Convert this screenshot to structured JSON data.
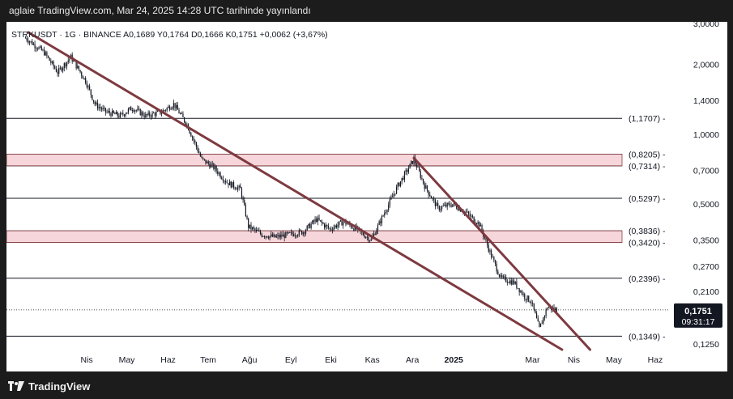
{
  "header": {
    "publish_line": "aglaie TradingView.com, Mar 24, 2025 14:28 UTC tarihinde yayınlandı"
  },
  "legend": {
    "text": "STRKUSDT · 1G · BINANCE  A0,1689  Y0,1764  D0,1666  K0,1751  +0,0062 (+3,67%)"
  },
  "footer": {
    "brand": "TradingView"
  },
  "colors": {
    "trendline": "#7d3a40",
    "zone_fill": "#f6d6da",
    "zone_stroke": "#8a3f45",
    "candle": "#131722",
    "price_tag_bg": "#131722",
    "price_tag_text": "#ffffff"
  },
  "chart_data": {
    "type": "candlestick",
    "symbol": "STRKUSDT",
    "interval": "1G",
    "exchange": "BINANCE",
    "ohlc_last": {
      "open": "0,1689",
      "high": "0,1764",
      "low": "0,1666",
      "close": "0,1751",
      "change": "+0,0062",
      "change_pct": "+3,67%"
    },
    "y_scale": "log",
    "ylim": [
      0.118,
      3.05
    ],
    "y_ticks": [
      {
        "value": 3.0,
        "label": "3,0000"
      },
      {
        "value": 2.0,
        "label": "2,0000"
      },
      {
        "value": 1.4,
        "label": "1,4000"
      },
      {
        "value": 1.0,
        "label": "1,0000"
      },
      {
        "value": 0.7,
        "label": "0,7000"
      },
      {
        "value": 0.5,
        "label": "0,5000"
      },
      {
        "value": 0.35,
        "label": "0,3500"
      },
      {
        "value": 0.27,
        "label": "0,2700"
      },
      {
        "value": 0.21,
        "label": "0,2100"
      },
      {
        "value": 0.125,
        "label": "0,1250"
      }
    ],
    "x_ticks": [
      "Nis",
      "May",
      "Haz",
      "Tem",
      "Ağu",
      "Eyl",
      "Eki",
      "Kas",
      "Ara",
      "2025",
      "Mar",
      "Nis",
      "May",
      "Haz"
    ],
    "levels": [
      {
        "value": 1.1707,
        "label": "(1,1707)"
      },
      {
        "value": 0.8205,
        "label": "(0,8205)"
      },
      {
        "value": 0.7314,
        "label": "(0,7314)"
      },
      {
        "value": 0.5297,
        "label": "(0,5297)"
      },
      {
        "value": 0.3836,
        "label": "(0,3836)"
      },
      {
        "value": 0.342,
        "label": "(0,3420)"
      },
      {
        "value": 0.2396,
        "label": "(0,2396)"
      },
      {
        "value": 0.1349,
        "label": "(0,1349)"
      }
    ],
    "zones": [
      {
        "from": 0.7314,
        "to": 0.8205
      },
      {
        "from": 0.342,
        "to": 0.3836
      }
    ],
    "current_price": {
      "value": 0.1751,
      "label": "0,1751",
      "countdown": "09:31:17"
    },
    "trendlines": [
      {
        "from": [
          "2024-02-22",
          2.75
        ],
        "to": [
          "2025-03-28",
          0.118
        ]
      },
      {
        "from": [
          "2024-12-07",
          0.79
        ],
        "to": [
          "2025-04-18",
          0.118
        ]
      }
    ],
    "price_path": [
      [
        "2024-02-20",
        2.6
      ],
      [
        "2024-03-05",
        2.25
      ],
      [
        "2024-03-15",
        1.85
      ],
      [
        "2024-03-25",
        2.15
      ],
      [
        "2024-04-05",
        1.7
      ],
      [
        "2024-04-12",
        1.35
      ],
      [
        "2024-04-20",
        1.25
      ],
      [
        "2024-05-01",
        1.2
      ],
      [
        "2024-05-10",
        1.3
      ],
      [
        "2024-05-20",
        1.2
      ],
      [
        "2024-06-01",
        1.25
      ],
      [
        "2024-06-10",
        1.35
      ],
      [
        "2024-06-20",
        1.1
      ],
      [
        "2024-07-01",
        0.78
      ],
      [
        "2024-07-10",
        0.72
      ],
      [
        "2024-07-20",
        0.62
      ],
      [
        "2024-07-30",
        0.58
      ],
      [
        "2024-08-05",
        0.4
      ],
      [
        "2024-08-15",
        0.37
      ],
      [
        "2024-08-25",
        0.36
      ],
      [
        "2024-09-05",
        0.37
      ],
      [
        "2024-09-15",
        0.38
      ],
      [
        "2024-09-25",
        0.43
      ],
      [
        "2024-10-05",
        0.39
      ],
      [
        "2024-10-15",
        0.42
      ],
      [
        "2024-10-25",
        0.39
      ],
      [
        "2024-11-05",
        0.35
      ],
      [
        "2024-11-15",
        0.46
      ],
      [
        "2024-11-25",
        0.6
      ],
      [
        "2024-12-07",
        0.78
      ],
      [
        "2024-12-15",
        0.6
      ],
      [
        "2024-12-25",
        0.48
      ],
      [
        "2025-01-05",
        0.5
      ],
      [
        "2025-01-15",
        0.46
      ],
      [
        "2025-01-25",
        0.41
      ],
      [
        "2025-02-03",
        0.3
      ],
      [
        "2025-02-10",
        0.24
      ],
      [
        "2025-02-20",
        0.23
      ],
      [
        "2025-02-28",
        0.2
      ],
      [
        "2025-03-05",
        0.19
      ],
      [
        "2025-03-11",
        0.145
      ],
      [
        "2025-03-17",
        0.18
      ],
      [
        "2025-03-24",
        0.1751
      ]
    ]
  }
}
